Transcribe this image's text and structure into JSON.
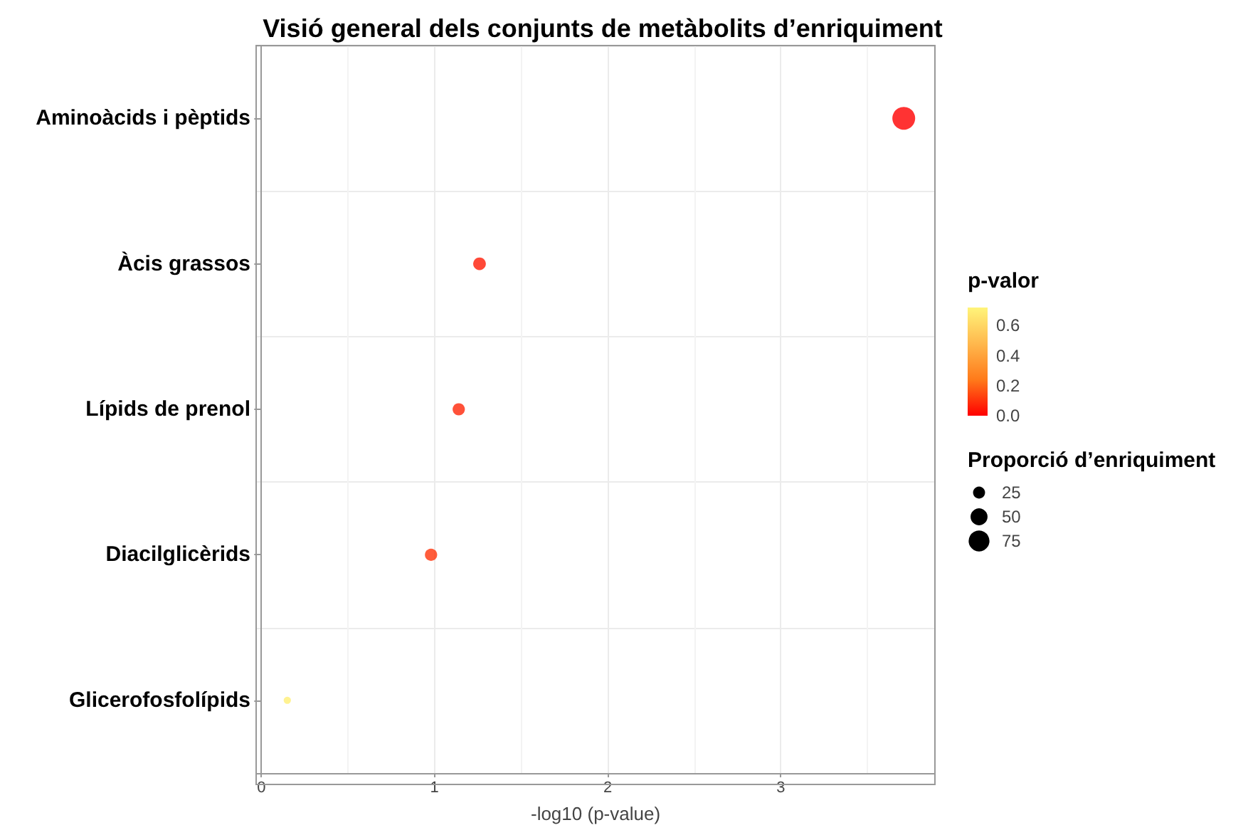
{
  "chart_data": {
    "type": "bubble",
    "title": "Visió general dels conjunts de metàbolits d’enriquiment",
    "xlabel": "-log10 (p-value)",
    "clabel": "p-valor",
    "legend_title": "Proporció d’enriquiment",
    "orientation": "horizontal",
    "categories": [
      "Aminoàcids i pèptids",
      "Àcis grassos",
      "Lípids de prenol",
      "Diacilglicèrids",
      "Glicerofosfolípids"
    ],
    "values": [
      3.71,
      1.26,
      1.14,
      0.98,
      0.15
    ],
    "sizes": [
      90,
      28,
      26,
      26,
      9
    ],
    "cvalues": [
      0.0002,
      0.055,
      0.072,
      0.105,
      0.7
    ],
    "size_legend": [
      25,
      50,
      75
    ],
    "clim": [
      0,
      0.72
    ],
    "cticks": [
      {
        "value": 0,
        "label": "0.0"
      },
      {
        "value": 0.2,
        "label": "0.2"
      },
      {
        "value": 0.4,
        "label": "0.4"
      },
      {
        "value": 0.6,
        "label": "0.6"
      }
    ],
    "xlim": [
      -0.03,
      3.89
    ],
    "xticks": [
      0,
      1,
      2,
      3
    ],
    "grid": true
  }
}
